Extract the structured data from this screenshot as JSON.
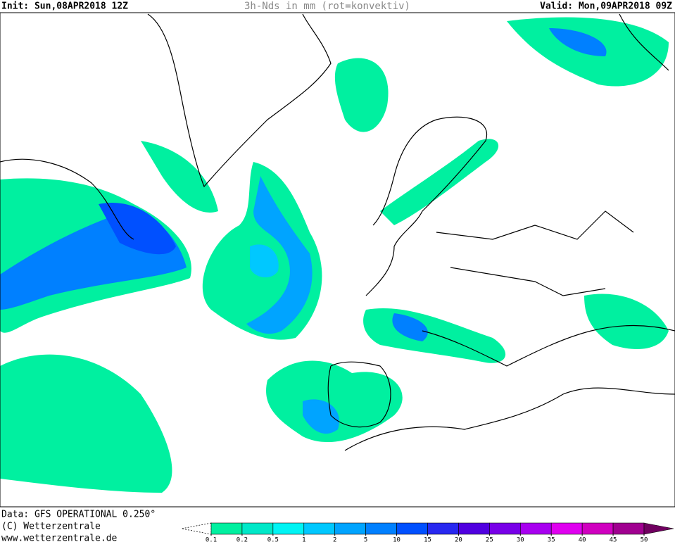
{
  "header": {
    "init": "Init: Sun,08APR2018 12Z",
    "title": "3h-Nds in mm (rot=konvektiv)",
    "valid": "Valid: Mon,09APR2018 09Z"
  },
  "footer": {
    "data": "Data: GFS OPERATIONAL 0.250°",
    "copyright": "(C) Wetterzentrale",
    "url": "www.wetterzentrale.de"
  },
  "legend": {
    "ticks": [
      0.1,
      0.2,
      0.5,
      1,
      2,
      5,
      10,
      15,
      20,
      25,
      30,
      35,
      40,
      45,
      50
    ],
    "colors": [
      "#00f0a0",
      "#00e8c8",
      "#00f4f4",
      "#00c8ff",
      "#00a4ff",
      "#0080ff",
      "#0050ff",
      "#2828f0",
      "#5000e0",
      "#7800e8",
      "#a800f0",
      "#e000f0",
      "#d000c0",
      "#a00090",
      "#700060"
    ]
  }
}
